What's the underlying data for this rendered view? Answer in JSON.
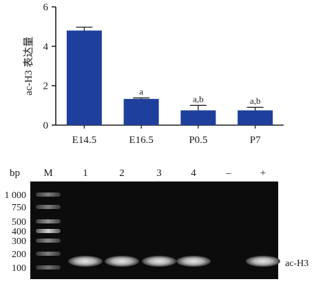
{
  "chart_data": {
    "type": "bar",
    "ylabel": "ac-H3 表达量",
    "ylim": [
      0,
      6
    ],
    "yticks": [
      "0",
      "2",
      "4",
      "6"
    ],
    "categories": [
      "E14.5",
      "E16.5",
      "P0.5",
      "P7"
    ],
    "values": [
      4.8,
      1.33,
      0.75,
      0.75
    ],
    "errors": [
      0.17,
      0.05,
      0.25,
      0.15
    ],
    "annotations": [
      "",
      "a",
      "a,b",
      "a,b"
    ],
    "bar_color": "#1f3f9c"
  },
  "gel": {
    "bp_label": "bp",
    "headers": [
      "M",
      "1",
      "2",
      "3",
      "4",
      "–",
      "+"
    ],
    "ladder_labels": [
      "1 000",
      "750",
      "500",
      "400",
      "300",
      "200",
      "100"
    ],
    "band_label": "ac-H3",
    "lanes_with_band": [
      "1",
      "2",
      "3",
      "4",
      "+"
    ]
  }
}
